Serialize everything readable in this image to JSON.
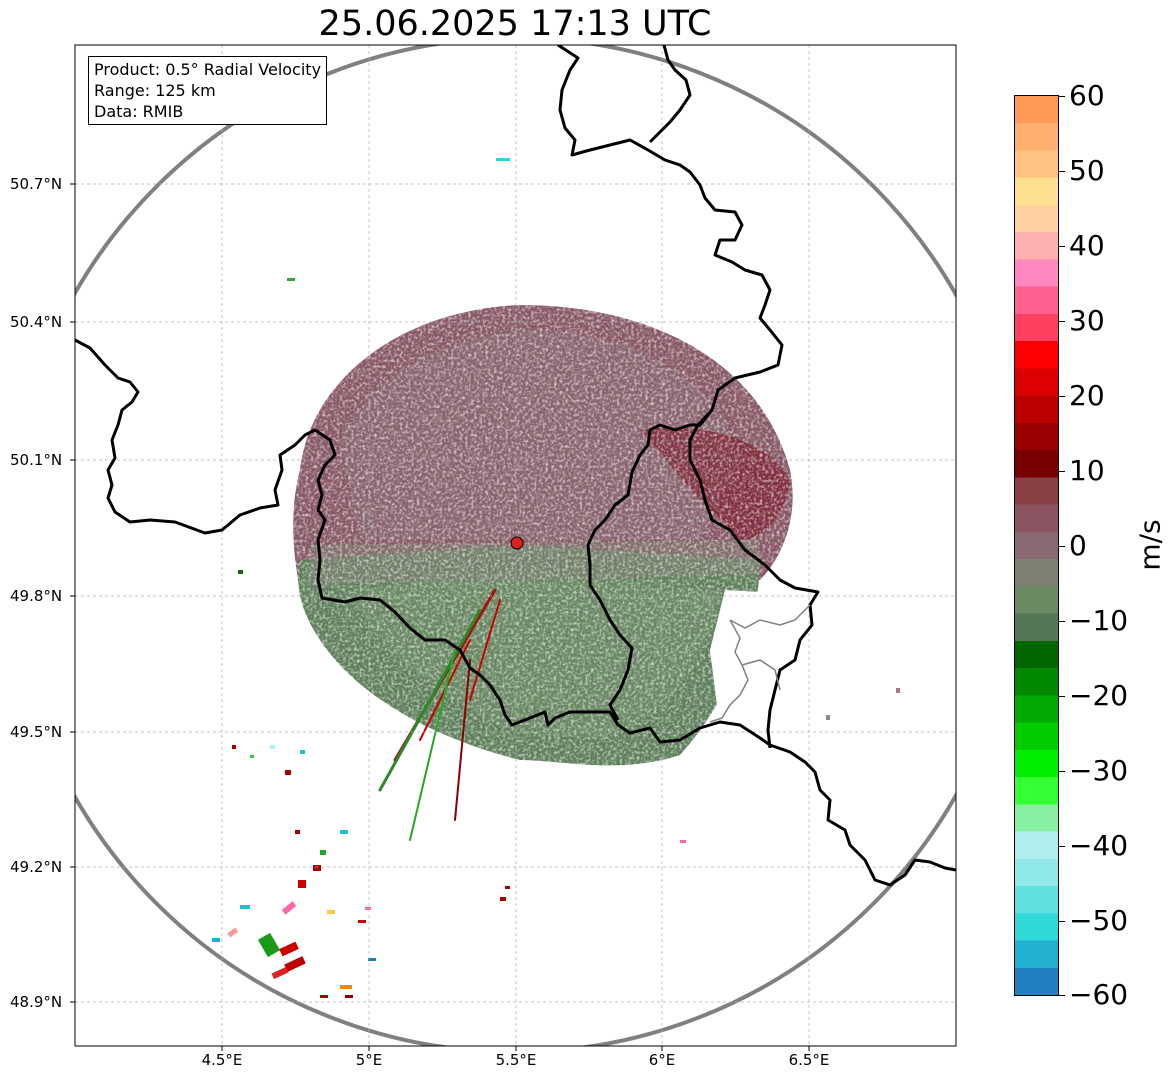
{
  "title": "25.06.2025 17:13 UTC",
  "info_box": {
    "lines": [
      "Product: 0.5° Radial Velocity",
      "Range: 125 km",
      "Data: RMIB"
    ]
  },
  "axes": {
    "lon_ticks": [
      "4.5°E",
      "5°E",
      "5.5°E",
      "6°E",
      "6.5°E"
    ],
    "lat_ticks": [
      "50.7°N",
      "50.4°N",
      "50.1°N",
      "49.8°N",
      "49.5°N",
      "49.2°N",
      "48.9°N"
    ],
    "grid": true
  },
  "colorbar": {
    "label": "m/s",
    "ticks": [
      "60",
      "50",
      "40",
      "30",
      "20",
      "10",
      "0",
      "−10",
      "−20",
      "−30",
      "−40",
      "−50",
      "−60"
    ],
    "range": [
      -60,
      60
    ],
    "colors_top_to_bottom": [
      "#ff9955",
      "#ffb070",
      "#ffc280",
      "#ffe090",
      "#ffd0a0",
      "#ffb0b0",
      "#ff88c0",
      "#ff6090",
      "#ff4060",
      "#ff0000",
      "#dd0000",
      "#bb0000",
      "#990000",
      "#770000",
      "#884044",
      "#8a5560",
      "#8a6a72",
      "#7f7f72",
      "#6a8a64",
      "#557755",
      "#006600",
      "#008800",
      "#00aa00",
      "#00cc00",
      "#00ee00",
      "#33ff33",
      "#88f0a0",
      "#b0eeee",
      "#90e8e8",
      "#60e0e0",
      "#30d8d8",
      "#20b0d0",
      "#2080c0"
    ]
  },
  "map": {
    "range_ring": "125 km",
    "radar_site": {
      "lon": 5.505,
      "lat": 49.914,
      "color": "#e02020"
    }
  }
}
